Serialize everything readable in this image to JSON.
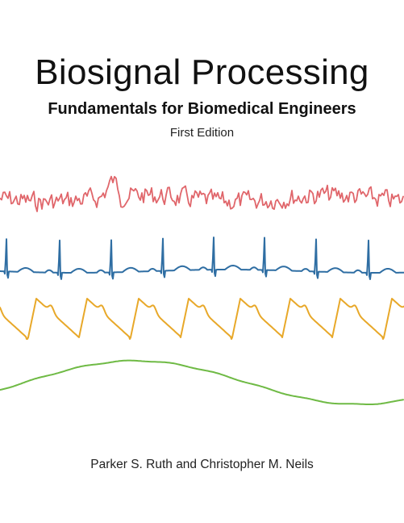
{
  "cover": {
    "title": "Biosignal Processing",
    "subtitle": "Fundamentals for Biomedical Engineers",
    "edition": "First Edition",
    "authors": "Parker S. Ruth and Christopher M. Neils"
  },
  "colors": {
    "trace_red": "#e0666b",
    "trace_blue": "#2f6ea3",
    "trace_yellow": "#e8a829",
    "trace_green": "#6fba45",
    "text": "#111111"
  }
}
